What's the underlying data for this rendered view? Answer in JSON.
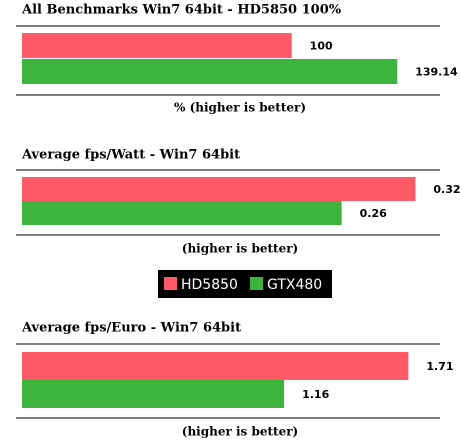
{
  "legend": [
    {
      "name": "HD5850",
      "color": "#ff5a66"
    },
    {
      "name": "GTX480",
      "color": "#3db43d"
    }
  ],
  "chart_data": [
    {
      "type": "bar",
      "orientation": "horizontal",
      "title": "All Benchmarks Win7 64bit - HD5850 100%",
      "x_label": "% (higher is better)",
      "values": [
        100,
        139.14
      ],
      "xlim": [
        0,
        155
      ]
    },
    {
      "type": "bar",
      "orientation": "horizontal",
      "title": "Average fps/Watt - Win7 64bit",
      "x_label": "(higher is better)",
      "values": [
        0.32,
        0.26
      ],
      "xlim": [
        0,
        0.34
      ]
    },
    {
      "type": "bar",
      "orientation": "horizontal",
      "title": "Average fps/Euro - Win7 64bit",
      "x_label": "(higher is better)",
      "values": [
        1.71,
        1.16
      ],
      "xlim": [
        0,
        1.85
      ]
    }
  ]
}
